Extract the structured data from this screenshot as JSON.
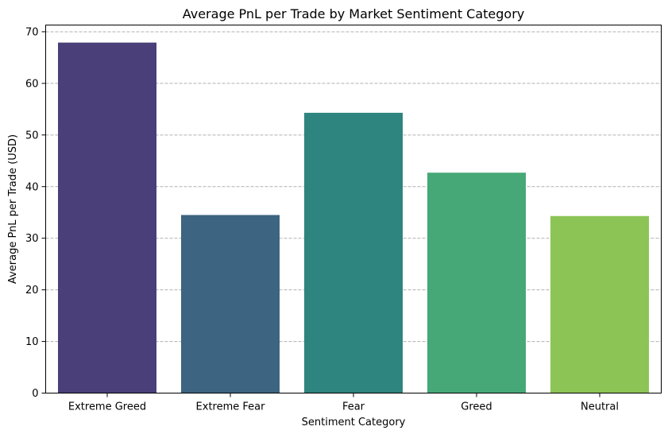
{
  "chart_data": {
    "type": "bar",
    "title": "Average PnL per Trade by Market Sentiment Category",
    "xlabel": "Sentiment Category",
    "ylabel": "Average PnL per Trade (USD)",
    "categories": [
      "Extreme Greed",
      "Extreme Fear",
      "Fear",
      "Greed",
      "Neutral"
    ],
    "values": [
      67.9,
      34.5,
      54.3,
      42.7,
      34.3
    ],
    "colors": [
      "#4a3f78",
      "#3d6480",
      "#2e847e",
      "#46a877",
      "#8dc456"
    ],
    "ylim": [
      0,
      71.3
    ],
    "yticks": [
      0,
      10,
      20,
      30,
      40,
      50,
      60,
      70
    ],
    "grid": {
      "y": true,
      "style": "dashed",
      "color": "#b0b0b0"
    }
  }
}
